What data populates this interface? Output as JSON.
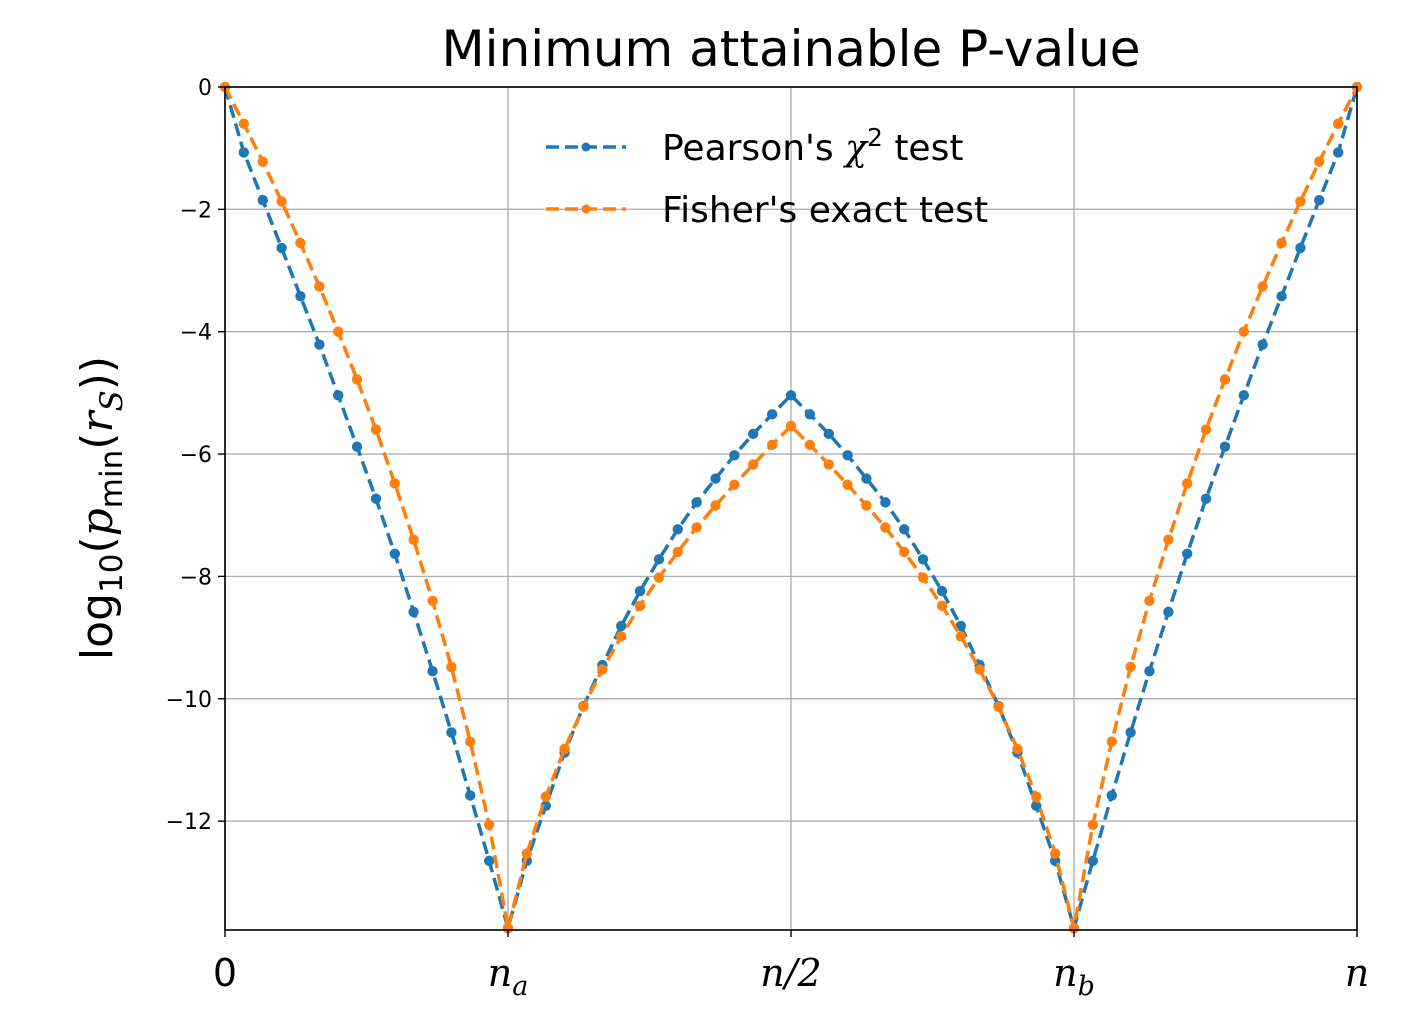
{
  "chart_data": {
    "type": "line",
    "title": "Minimum attainable P-value",
    "ylabel": {
      "prefix": "log",
      "base": "10",
      "open": "(",
      "p": "p",
      "p_sub": "min",
      "mid": "(",
      "r": "r",
      "r_sub": "S",
      "close": "))"
    },
    "x_ticks": [
      {
        "value": 0,
        "label": "0",
        "sub": ""
      },
      {
        "value": 20,
        "label": "n",
        "sub": "a"
      },
      {
        "value": 40,
        "label": "n/2",
        "sub": ""
      },
      {
        "value": 60,
        "label": "n",
        "sub": "b"
      },
      {
        "value": 80,
        "label": "n",
        "sub": ""
      }
    ],
    "y_ticks": [
      {
        "value": 0,
        "label": "0"
      },
      {
        "value": -2,
        "label": "−2"
      },
      {
        "value": -4,
        "label": "−4"
      },
      {
        "value": -6,
        "label": "−6"
      },
      {
        "value": -8,
        "label": "−8"
      },
      {
        "value": -10,
        "label": "−10"
      },
      {
        "value": -12,
        "label": "−12"
      }
    ],
    "xlim": [
      0,
      80
    ],
    "ylim": [
      -13.78,
      0
    ],
    "grid": true,
    "legend_position": "top-center",
    "x": [
      0,
      1.37,
      2.73,
      4.1,
      5.47,
      6.83,
      8.2,
      9.57,
      10.93,
      12.3,
      13.67,
      15.03,
      16.4,
      17.77,
      19.13,
      20.5,
      21.87,
      23.23,
      24.6,
      25.97,
      27.33,
      28.7,
      30.07,
      31.43,
      32.8,
      34.17,
      35.53,
      36.9,
      38.27,
      39.63,
      41.0,
      42.37,
      43.73,
      45.1,
      46.47,
      47.83,
      49.2,
      50.57,
      51.93,
      53.3,
      54.67,
      56.03,
      57.4,
      58.77,
      60.13,
      61.5,
      62.87,
      64.23,
      65.6,
      66.97,
      68.33,
      69.7,
      71.07,
      72.43,
      73.8,
      75.17,
      76.53,
      77.9,
      79.27,
      80.63
    ],
    "series": [
      {
        "name": "Pearson's χ² test",
        "label_main": "Pearson's ",
        "label_sym": "χ",
        "label_sup": "2",
        "label_tail": " test",
        "color": "#1f77b4",
        "points": [
          [
            0,
            0
          ],
          [
            1.33,
            -1.07
          ],
          [
            2.67,
            -1.85
          ],
          [
            4.0,
            -2.63
          ],
          [
            5.33,
            -3.42
          ],
          [
            6.67,
            -4.21
          ],
          [
            8.0,
            -5.04
          ],
          [
            9.33,
            -5.88
          ],
          [
            10.67,
            -6.73
          ],
          [
            12.0,
            -7.63
          ],
          [
            13.33,
            -8.58
          ],
          [
            14.67,
            -9.55
          ],
          [
            16.0,
            -10.55
          ],
          [
            17.33,
            -11.58
          ],
          [
            18.67,
            -12.65
          ],
          [
            20.0,
            -13.75
          ],
          [
            21.33,
            -12.65
          ],
          [
            22.67,
            -11.75
          ],
          [
            24.0,
            -10.88
          ],
          [
            25.33,
            -10.12
          ],
          [
            26.67,
            -9.45
          ],
          [
            28.0,
            -8.81
          ],
          [
            29.33,
            -8.24
          ],
          [
            30.67,
            -7.72
          ],
          [
            32.0,
            -7.23
          ],
          [
            33.33,
            -6.79
          ],
          [
            34.67,
            -6.4
          ],
          [
            36.0,
            -6.02
          ],
          [
            37.33,
            -5.67
          ],
          [
            38.67,
            -5.35
          ],
          [
            40.0,
            -5.04
          ],
          [
            41.33,
            -5.35
          ],
          [
            42.67,
            -5.67
          ],
          [
            44.0,
            -6.02
          ],
          [
            45.33,
            -6.4
          ],
          [
            46.67,
            -6.79
          ],
          [
            48.0,
            -7.23
          ],
          [
            49.33,
            -7.72
          ],
          [
            50.67,
            -8.24
          ],
          [
            52.0,
            -8.81
          ],
          [
            53.33,
            -9.45
          ],
          [
            54.67,
            -10.12
          ],
          [
            56.0,
            -10.88
          ],
          [
            57.33,
            -11.75
          ],
          [
            58.67,
            -12.65
          ],
          [
            60.0,
            -13.75
          ],
          [
            61.33,
            -12.65
          ],
          [
            62.67,
            -11.58
          ],
          [
            64.0,
            -10.55
          ],
          [
            65.33,
            -9.55
          ],
          [
            66.67,
            -8.58
          ],
          [
            68.0,
            -7.63
          ],
          [
            69.33,
            -6.73
          ],
          [
            70.67,
            -5.88
          ],
          [
            72.0,
            -5.04
          ],
          [
            73.33,
            -4.21
          ],
          [
            74.67,
            -3.42
          ],
          [
            76.0,
            -2.63
          ],
          [
            77.33,
            -1.85
          ],
          [
            78.67,
            -1.07
          ],
          [
            80.0,
            0
          ]
        ]
      },
      {
        "name": "Fisher's exact test",
        "label_main": "Fisher's exact test",
        "label_sym": "",
        "label_sup": "",
        "label_tail": "",
        "color": "#ff7f0e",
        "points": [
          [
            0,
            0
          ],
          [
            1.33,
            -0.6
          ],
          [
            2.67,
            -1.22
          ],
          [
            4.0,
            -1.87
          ],
          [
            5.33,
            -2.55
          ],
          [
            6.67,
            -3.26
          ],
          [
            8.0,
            -4.0
          ],
          [
            9.33,
            -4.78
          ],
          [
            10.67,
            -5.6
          ],
          [
            12.0,
            -6.48
          ],
          [
            13.33,
            -7.4
          ],
          [
            14.67,
            -8.4
          ],
          [
            16.0,
            -9.48
          ],
          [
            17.33,
            -10.7
          ],
          [
            18.67,
            -12.06
          ],
          [
            20.0,
            -13.75
          ],
          [
            21.33,
            -12.53
          ],
          [
            22.67,
            -11.6
          ],
          [
            24.0,
            -10.82
          ],
          [
            25.33,
            -10.13
          ],
          [
            26.67,
            -9.52
          ],
          [
            28.0,
            -8.98
          ],
          [
            29.33,
            -8.48
          ],
          [
            30.67,
            -8.02
          ],
          [
            32.0,
            -7.6
          ],
          [
            33.33,
            -7.2
          ],
          [
            34.67,
            -6.84
          ],
          [
            36.0,
            -6.5
          ],
          [
            37.33,
            -6.17
          ],
          [
            38.67,
            -5.85
          ],
          [
            40.0,
            -5.54
          ],
          [
            41.33,
            -5.85
          ],
          [
            42.67,
            -6.17
          ],
          [
            44.0,
            -6.5
          ],
          [
            45.33,
            -6.84
          ],
          [
            46.67,
            -7.2
          ],
          [
            48.0,
            -7.6
          ],
          [
            49.33,
            -8.02
          ],
          [
            50.67,
            -8.48
          ],
          [
            52.0,
            -8.98
          ],
          [
            53.33,
            -9.52
          ],
          [
            54.67,
            -10.13
          ],
          [
            56.0,
            -10.82
          ],
          [
            57.33,
            -11.6
          ],
          [
            58.67,
            -12.53
          ],
          [
            60.0,
            -13.75
          ],
          [
            61.33,
            -12.06
          ],
          [
            62.67,
            -10.7
          ],
          [
            64.0,
            -9.48
          ],
          [
            65.33,
            -8.4
          ],
          [
            66.67,
            -7.4
          ],
          [
            68.0,
            -6.48
          ],
          [
            69.33,
            -5.6
          ],
          [
            70.67,
            -4.78
          ],
          [
            72.0,
            -4.0
          ],
          [
            73.33,
            -3.26
          ],
          [
            74.67,
            -2.55
          ],
          [
            76.0,
            -1.87
          ],
          [
            77.33,
            -1.22
          ],
          [
            78.67,
            -0.6
          ],
          [
            80.0,
            0
          ]
        ]
      }
    ]
  }
}
